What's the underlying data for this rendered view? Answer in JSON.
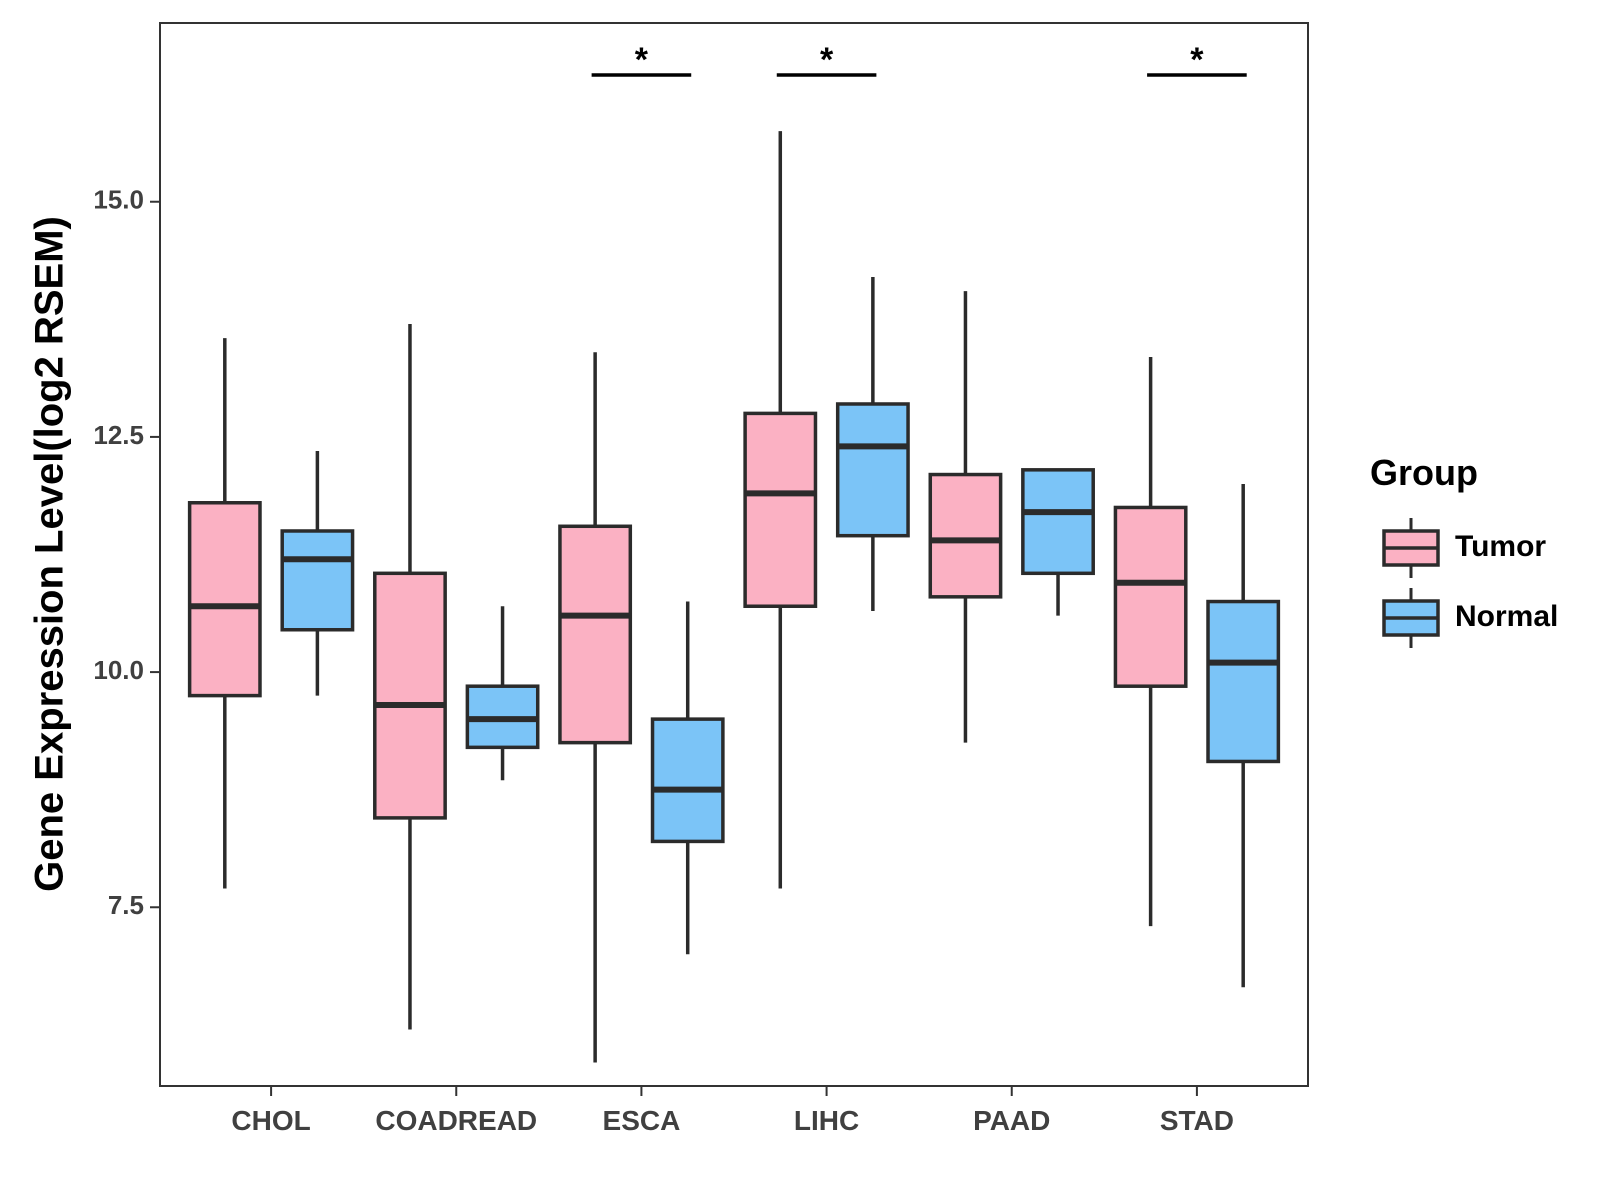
{
  "chart_data": {
    "type": "boxplot",
    "title": "",
    "xlabel": "",
    "ylabel": "Gene Expression Level(log2 RSEM)",
    "ylim": [
      5.6,
      16.9
    ],
    "yticks": [
      7.5,
      10.0,
      12.5,
      15.0
    ],
    "ytick_labels": [
      "7.5",
      "10.0",
      "12.5",
      "15.0"
    ],
    "grid": false,
    "categories": [
      "CHOL",
      "COADREAD",
      "ESCA",
      "LIHC",
      "PAAD",
      "STAD"
    ],
    "legend": {
      "title": "Group",
      "position": "right"
    },
    "series": [
      {
        "name": "Tumor",
        "color": "#FBB1C3",
        "boxes": [
          {
            "min": 7.7,
            "q1": 9.75,
            "median": 10.7,
            "q3": 11.8,
            "max": 13.55
          },
          {
            "min": 6.2,
            "q1": 8.45,
            "median": 9.65,
            "q3": 11.05,
            "max": 13.7
          },
          {
            "min": 5.85,
            "q1": 9.25,
            "median": 10.6,
            "q3": 11.55,
            "max": 13.4
          },
          {
            "min": 7.7,
            "q1": 10.7,
            "median": 11.9,
            "q3": 12.75,
            "max": 15.75
          },
          {
            "min": 9.25,
            "q1": 10.8,
            "median": 11.4,
            "q3": 12.1,
            "max": 14.05
          },
          {
            "min": 7.3,
            "q1": 9.85,
            "median": 10.95,
            "q3": 11.75,
            "max": 13.35
          }
        ]
      },
      {
        "name": "Normal",
        "color": "#7BC4F7",
        "boxes": [
          {
            "min": 9.75,
            "q1": 10.45,
            "median": 11.2,
            "q3": 11.5,
            "max": 12.35
          },
          {
            "min": 8.85,
            "q1": 9.2,
            "median": 9.5,
            "q3": 9.85,
            "max": 10.7
          },
          {
            "min": 7.0,
            "q1": 8.2,
            "median": 8.75,
            "q3": 9.5,
            "max": 10.75
          },
          {
            "min": 10.65,
            "q1": 11.45,
            "median": 12.4,
            "q3": 12.85,
            "max": 14.2
          },
          {
            "min": 10.6,
            "q1": 11.05,
            "median": 11.7,
            "q3": 12.15,
            "max": 12.15
          },
          {
            "min": 6.65,
            "q1": 9.05,
            "median": 10.1,
            "q3": 10.75,
            "max": 12.0
          }
        ]
      }
    ],
    "annotations": [
      {
        "category": "ESCA",
        "text": "*"
      },
      {
        "category": "LIHC",
        "text": "*"
      },
      {
        "category": "STAD",
        "text": "*"
      }
    ]
  }
}
